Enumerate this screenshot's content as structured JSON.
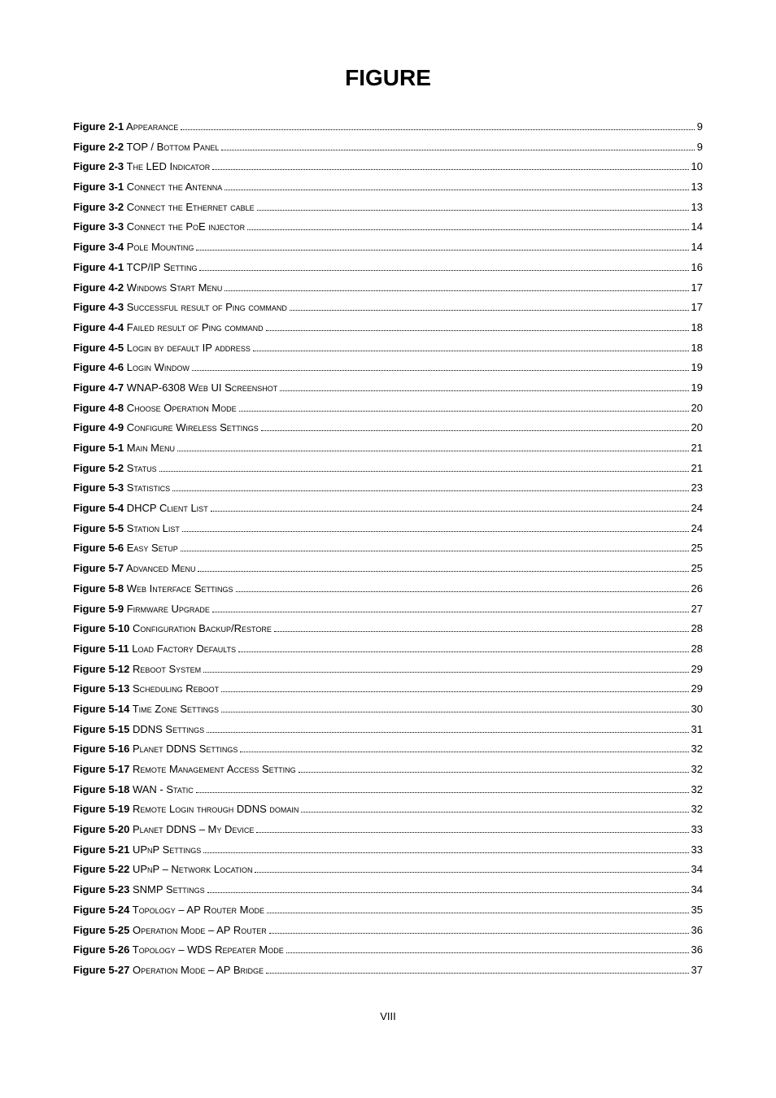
{
  "title": "FIGURE",
  "footer": "VIII",
  "entries": [
    {
      "prefix": "Figure 2-1",
      "text": " Appearance",
      "page": "9"
    },
    {
      "prefix": "Figure 2-2",
      "text": " TOP / Bottom Panel",
      "page": "9"
    },
    {
      "prefix": "Figure 2-3",
      "text": " The LED Indicator",
      "page": "10"
    },
    {
      "prefix": "Figure 3-1",
      "text": " Connect the Antenna",
      "page": "13"
    },
    {
      "prefix": "Figure 3-2",
      "text": " Connect the Ethernet cable",
      "page": "13"
    },
    {
      "prefix": "Figure 3-3",
      "text": " Connect the PoE injector",
      "page": "14"
    },
    {
      "prefix": "Figure 3-4",
      "text": " Pole Mounting",
      "page": "14"
    },
    {
      "prefix": "Figure 4-1",
      "text": " TCP/IP Setting",
      "page": "16"
    },
    {
      "prefix": "Figure 4-2",
      "text": " Windows Start Menu",
      "page": "17"
    },
    {
      "prefix": "Figure 4-3",
      "text": " Successful result of Ping command",
      "page": "17"
    },
    {
      "prefix": "Figure 4-4",
      "text": " Failed result of Ping command",
      "page": "18"
    },
    {
      "prefix": "Figure 4-5",
      "text": " Login by default IP address",
      "page": "18"
    },
    {
      "prefix": "Figure 4-6",
      "text": " Login Window",
      "page": "19"
    },
    {
      "prefix": "Figure 4-7",
      "text": " WNAP-6308 Web UI Screenshot",
      "page": "19"
    },
    {
      "prefix": "Figure 4-8",
      "text": " Choose Operation Mode",
      "page": "20"
    },
    {
      "prefix": "Figure 4-9",
      "text": " Configure Wireless Settings",
      "page": "20"
    },
    {
      "prefix": "Figure 5-1",
      "text": " Main Menu",
      "page": "21"
    },
    {
      "prefix": "Figure 5-2",
      "text": " Status",
      "page": "21"
    },
    {
      "prefix": "Figure 5-3",
      "text": " Statistics",
      "page": "23"
    },
    {
      "prefix": "Figure 5-4",
      "text": " DHCP Client List",
      "page": "24"
    },
    {
      "prefix": "Figure 5-5",
      "text": " Station List",
      "page": "24"
    },
    {
      "prefix": "Figure 5-6",
      "text": " Easy Setup",
      "page": "25"
    },
    {
      "prefix": "Figure 5-7",
      "text": " Advanced Menu",
      "page": "25"
    },
    {
      "prefix": "Figure 5-8",
      "text": " Web Interface Settings",
      "page": "26"
    },
    {
      "prefix": "Figure 5-9",
      "text": " Firmware Upgrade",
      "page": "27"
    },
    {
      "prefix": "Figure 5-10",
      "text": " Configuration Backup/Restore",
      "page": "28"
    },
    {
      "prefix": "Figure 5-11",
      "text": " Load Factory Defaults",
      "page": "28"
    },
    {
      "prefix": "Figure 5-12",
      "text": " Reboot System",
      "page": "29"
    },
    {
      "prefix": "Figure 5-13",
      "text": " Scheduling Reboot",
      "page": "29"
    },
    {
      "prefix": "Figure 5-14",
      "text": " Time Zone Settings",
      "page": "30"
    },
    {
      "prefix": "Figure 5-15",
      "text": " DDNS Settings",
      "page": "31"
    },
    {
      "prefix": "Figure 5-16",
      "text": " Planet DDNS Settings",
      "page": "32"
    },
    {
      "prefix": "Figure 5-17",
      "text": " Remote Management Access Setting",
      "page": "32"
    },
    {
      "prefix": "Figure 5-18",
      "text": " WAN - Static",
      "page": "32"
    },
    {
      "prefix": "Figure 5-19",
      "text": " Remote Login through DDNS domain",
      "page": "32"
    },
    {
      "prefix": "Figure 5-20",
      "text": " Planet DDNS – My Device",
      "page": "33"
    },
    {
      "prefix": "Figure 5-21",
      "text": " UPnP Settings",
      "page": "33"
    },
    {
      "prefix": "Figure 5-22",
      "text": " UPnP – Network Location",
      "page": "34"
    },
    {
      "prefix": "Figure 5-23",
      "text": " SNMP Settings",
      "page": "34"
    },
    {
      "prefix": "Figure 5-24",
      "text": " Topology – AP Router Mode",
      "page": "35"
    },
    {
      "prefix": "Figure 5-25",
      "text": " Operation Mode – AP Router",
      "page": "36"
    },
    {
      "prefix": "Figure 5-26",
      "text": " Topology – WDS Repeater Mode",
      "page": "36"
    },
    {
      "prefix": "Figure 5-27",
      "text": " Operation Mode – AP Bridge",
      "page": "37"
    }
  ]
}
